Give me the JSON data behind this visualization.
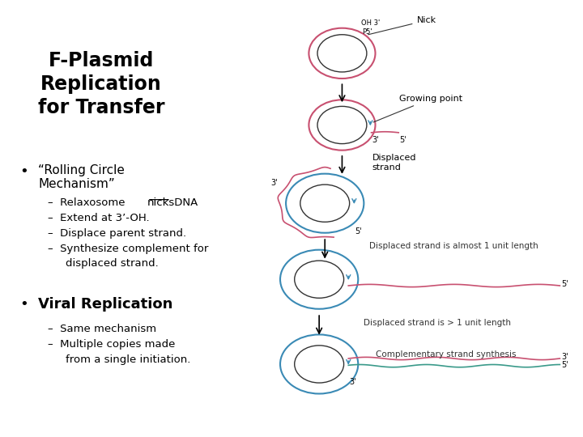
{
  "title": "F-Plasmid\nReplication\nfor Transfer",
  "bullet1": "“Rolling Circle\nMechanism”",
  "sub1a": "–  Relaxosome nicks DNA",
  "sub1b": "–  Extend at 3’-OH.",
  "sub1c": "–  Displace parent strand.",
  "sub1d_1": "–  Synthesize complement for",
  "sub1d_2": "displaced strand.",
  "bullet2": "Viral Replication",
  "sub2a": "–  Same mechanism",
  "sub2b_1": "–  Multiple copies made",
  "sub2b_2": "from a single initiation.",
  "background": "#ffffff",
  "pink": "#c85070",
  "blue": "#3a8ab5",
  "teal": "#3a9a8a",
  "dark": "#333333",
  "black": "#000000"
}
